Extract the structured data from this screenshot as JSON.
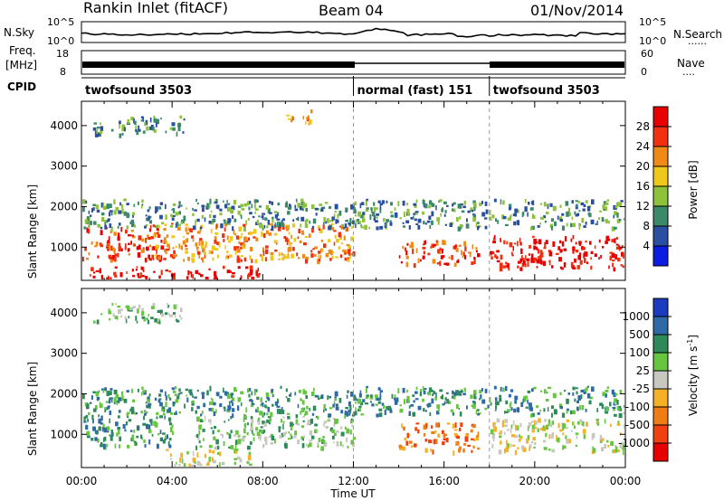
{
  "header": {
    "station": "Rankin Inlet (fitACF)",
    "beam": "Beam 04",
    "date": "01/Nov/2014"
  },
  "side_labels": {
    "nsky": "N.Sky",
    "nsearch": "N.Search",
    "freq_top": "Freq.",
    "freq_unit": "[MHz]",
    "nave": "Nave",
    "cpid": "CPID"
  },
  "noise_axis": {
    "left_top": "10^5",
    "left_bottom": "10^0",
    "right_top": "10^5",
    "right_bottom": "10^0"
  },
  "freq_axis": {
    "left_top": "18",
    "left_bottom": "8",
    "right_top": "60",
    "right_bottom": "0"
  },
  "cpid_segments": [
    {
      "label": "twofsound 3503",
      "start_h": 0,
      "end_h": 12
    },
    {
      "label": "normal (fast) 151",
      "start_h": 12,
      "end_h": 18
    },
    {
      "label": "twofsound 3503",
      "start_h": 18,
      "end_h": 24
    }
  ],
  "chart_data": [
    {
      "type": "heatmap",
      "panel": "power",
      "ylabel": "Slant Range [km]",
      "xlabel": "",
      "ylim": [
        180,
        4600
      ],
      "xlim_hours": [
        0,
        24
      ],
      "y_ticks": [
        "1000",
        "2000",
        "3000",
        "4000"
      ],
      "colorbar_label": "Power [dB]",
      "colorbar_ticks": [
        "4",
        "8",
        "12",
        "16",
        "20",
        "24",
        "28"
      ],
      "colorbar_colors": [
        "#0a1de0",
        "#2b4fa0",
        "#3a8a6a",
        "#8ec23a",
        "#f0c81c",
        "#f08a16",
        "#f03010",
        "#e80000"
      ],
      "regions": [
        {
          "t0": 0.0,
          "t1": 3.5,
          "r0": 700,
          "r1": 1500,
          "level": 6
        },
        {
          "t0": 0.3,
          "t1": 8.0,
          "r0": 250,
          "r1": 550,
          "level": 7
        },
        {
          "t0": 3.0,
          "t1": 12.0,
          "r0": 700,
          "r1": 1600,
          "level": 5
        },
        {
          "t0": 9.0,
          "t1": 10.5,
          "r0": 4100,
          "r1": 4400,
          "level": 5
        },
        {
          "t0": 14.0,
          "t1": 17.5,
          "r0": 600,
          "r1": 1200,
          "level": 6
        },
        {
          "t0": 18.0,
          "t1": 24.0,
          "r0": 500,
          "r1": 1300,
          "level": 7
        },
        {
          "t0": 0.0,
          "t1": 24.0,
          "r0": 1500,
          "r1": 2200,
          "level": 2
        },
        {
          "t0": 0.5,
          "t1": 4.5,
          "r0": 3800,
          "r1": 4250,
          "level": 2
        }
      ]
    },
    {
      "type": "heatmap",
      "panel": "velocity",
      "ylabel": "Slant Range [km]",
      "xlabel": "Time UT",
      "ylim": [
        180,
        4600
      ],
      "xlim_hours": [
        0,
        24
      ],
      "x_ticks": [
        "00:00",
        "04:00",
        "08:00",
        "12:00",
        "16:00",
        "20:00",
        "00:00"
      ],
      "y_ticks": [
        "1000",
        "2000",
        "3000",
        "4000"
      ],
      "colorbar_label": "Velocity [m s^-1]",
      "colorbar_ticks": [
        "1000",
        "500",
        "100",
        "25",
        "-25",
        "-100",
        "-500",
        "-1000"
      ],
      "colorbar_colors": [
        "#1c3cc0",
        "#2f6aa6",
        "#2f8a5a",
        "#66c640",
        "#c8c8c0",
        "#f4b026",
        "#f07c14",
        "#f04010",
        "#e60000"
      ],
      "regions": [
        {
          "t0": 0.0,
          "t1": 4.0,
          "r0": 700,
          "r1": 1500,
          "level": 2
        },
        {
          "t0": 3.5,
          "t1": 7.5,
          "r0": 250,
          "r1": 650,
          "level": 4
        },
        {
          "t0": 5.0,
          "t1": 12.0,
          "r0": 700,
          "r1": 1500,
          "level": 3
        },
        {
          "t0": 14.0,
          "t1": 17.5,
          "r0": 600,
          "r1": 1300,
          "level": 6
        },
        {
          "t0": 18.0,
          "t1": 24.0,
          "r0": 600,
          "r1": 1400,
          "level": 4
        },
        {
          "t0": 0.0,
          "t1": 24.0,
          "r0": 1500,
          "r1": 2200,
          "level": 2
        },
        {
          "t0": 0.5,
          "t1": 4.5,
          "r0": 3800,
          "r1": 4250,
          "level": 3
        }
      ]
    }
  ]
}
